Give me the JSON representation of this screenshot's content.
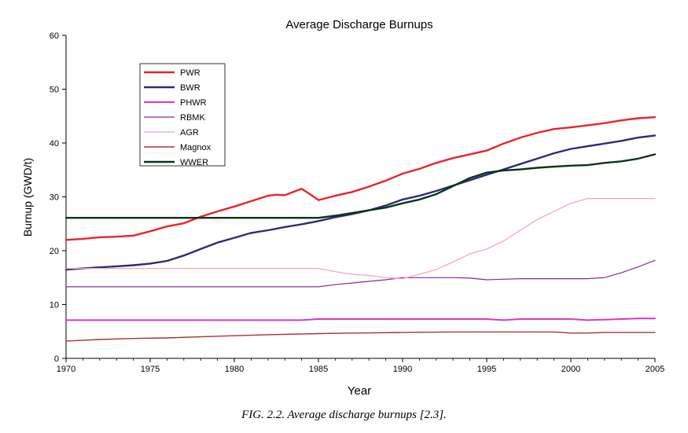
{
  "chart_data": {
    "type": "line",
    "title": "Average Discharge Burnups",
    "xlabel": "Year",
    "ylabel": "Burnup (GWD/t)",
    "xlim": [
      1970,
      2005
    ],
    "ylim": [
      0,
      60
    ],
    "xticks": [
      1970,
      1975,
      1980,
      1985,
      1990,
      1995,
      2000,
      2005
    ],
    "yticks": [
      0,
      10,
      20,
      30,
      40,
      50,
      60
    ],
    "grid": false,
    "legend_position": "top-left",
    "series": [
      {
        "name": "PWR",
        "color": "#e8242b",
        "x": [
          1970,
          1971,
          1972,
          1973,
          1974,
          1975,
          1976,
          1977,
          1978,
          1979,
          1980,
          1981,
          1982,
          1982.5,
          1983,
          1984,
          1984.5,
          1985,
          1986,
          1987,
          1988,
          1989,
          1990,
          1991,
          1992,
          1993,
          1994,
          1995,
          1996,
          1997,
          1998,
          1999,
          2000,
          2001,
          2002,
          2003,
          2004,
          2005
        ],
        "y": [
          22,
          22.2,
          22.5,
          22.6,
          22.8,
          23.6,
          24.5,
          25.1,
          26.3,
          27.3,
          28.2,
          29.2,
          30.2,
          30.4,
          30.3,
          31.5,
          30.5,
          29.4,
          30.2,
          30.9,
          31.9,
          33.0,
          34.3,
          35.2,
          36.3,
          37.2,
          37.9,
          38.6,
          39.9,
          41,
          41.9,
          42.6,
          42.9,
          43.3,
          43.7,
          44.2,
          44.6,
          44.8
        ]
      },
      {
        "name": "BWR",
        "color": "#2e2a7a",
        "x": [
          1970,
          1971,
          1972,
          1973,
          1974,
          1975,
          1976,
          1977,
          1978,
          1979,
          1980,
          1981,
          1982,
          1983,
          1984,
          1985,
          1986,
          1987,
          1988,
          1989,
          1990,
          1991,
          1992,
          1993,
          1994,
          1995,
          1996,
          1997,
          1998,
          1999,
          2000,
          2001,
          2002,
          2003,
          2004,
          2005
        ],
        "y": [
          16.5,
          16.7,
          16.9,
          17.1,
          17.3,
          17.6,
          18.1,
          19.1,
          20.3,
          21.5,
          22.4,
          23.3,
          23.8,
          24.4,
          24.9,
          25.5,
          26.2,
          26.8,
          27.5,
          28.4,
          29.5,
          30.2,
          31.1,
          32.1,
          33.1,
          34.1,
          35.1,
          36.1,
          37.1,
          38.1,
          38.9,
          39.4,
          39.9,
          40.4,
          41.0,
          41.4
        ]
      },
      {
        "name": "PHWR",
        "color": "#d83bb8",
        "x": [
          1970,
          1984,
          1985,
          1995,
          1996,
          1997,
          2000,
          2001,
          2002,
          2004,
          2005
        ],
        "y": [
          7.1,
          7.1,
          7.3,
          7.3,
          7.1,
          7.3,
          7.3,
          7.1,
          7.2,
          7.4,
          7.4
        ]
      },
      {
        "name": "RBMK",
        "color": "#8b2a8f",
        "x": [
          1970,
          1985,
          1986,
          1987,
          1988,
          1989,
          1990,
          1991,
          1992,
          1993,
          1994,
          1995,
          1996,
          1997,
          2000,
          2001,
          2002,
          2003,
          2004,
          2005
        ],
        "y": [
          13.3,
          13.3,
          13.7,
          14.0,
          14.3,
          14.6,
          15.0,
          15.0,
          15.0,
          15.0,
          14.9,
          14.6,
          14.7,
          14.8,
          14.8,
          14.8,
          15.0,
          15.9,
          17.0,
          18.2
        ]
      },
      {
        "name": "AGR",
        "color": "#f7a1b1",
        "x": [
          1970,
          1985,
          1986,
          1987,
          1988,
          1989,
          1990,
          1991,
          1992,
          1993,
          1994,
          1995,
          1996,
          1997,
          1998,
          1999,
          2000,
          2001,
          2002,
          2003,
          2004,
          2005
        ],
        "y": [
          16.7,
          16.7,
          16.1,
          15.6,
          15.4,
          15.0,
          14.8,
          15.6,
          16.5,
          17.9,
          19.4,
          20.3,
          21.8,
          23.8,
          25.8,
          27.3,
          28.8,
          29.7,
          29.7,
          29.7,
          29.7,
          29.7
        ]
      },
      {
        "name": "Magnox",
        "color": "#a5333c",
        "x": [
          1970,
          1972,
          1974,
          1976,
          1978,
          1980,
          1982,
          1985,
          1987,
          1990,
          1993,
          1996,
          1999,
          2000,
          2001,
          2002,
          2005
        ],
        "y": [
          3.2,
          3.5,
          3.7,
          3.8,
          4.0,
          4.2,
          4.4,
          4.6,
          4.7,
          4.8,
          4.9,
          4.9,
          4.9,
          4.7,
          4.7,
          4.8,
          4.8
        ]
      },
      {
        "name": "WWER",
        "color": "#0a3514",
        "x": [
          1970,
          1985,
          1986,
          1987,
          1988,
          1989,
          1990,
          1991,
          1992,
          1993,
          1994,
          1995,
          1996,
          1997,
          1998,
          1999,
          2000,
          2001,
          2002,
          2003,
          2004,
          2005
        ],
        "y": [
          26.1,
          26.1,
          26.5,
          27.0,
          27.5,
          28.0,
          28.8,
          29.5,
          30.5,
          32.0,
          33.5,
          34.5,
          34.9,
          35.1,
          35.4,
          35.6,
          35.8,
          35.9,
          36.3,
          36.6,
          37.1,
          37.9
        ]
      }
    ]
  },
  "caption": "FIG. 2.2.  Average discharge burnups [2.3]."
}
